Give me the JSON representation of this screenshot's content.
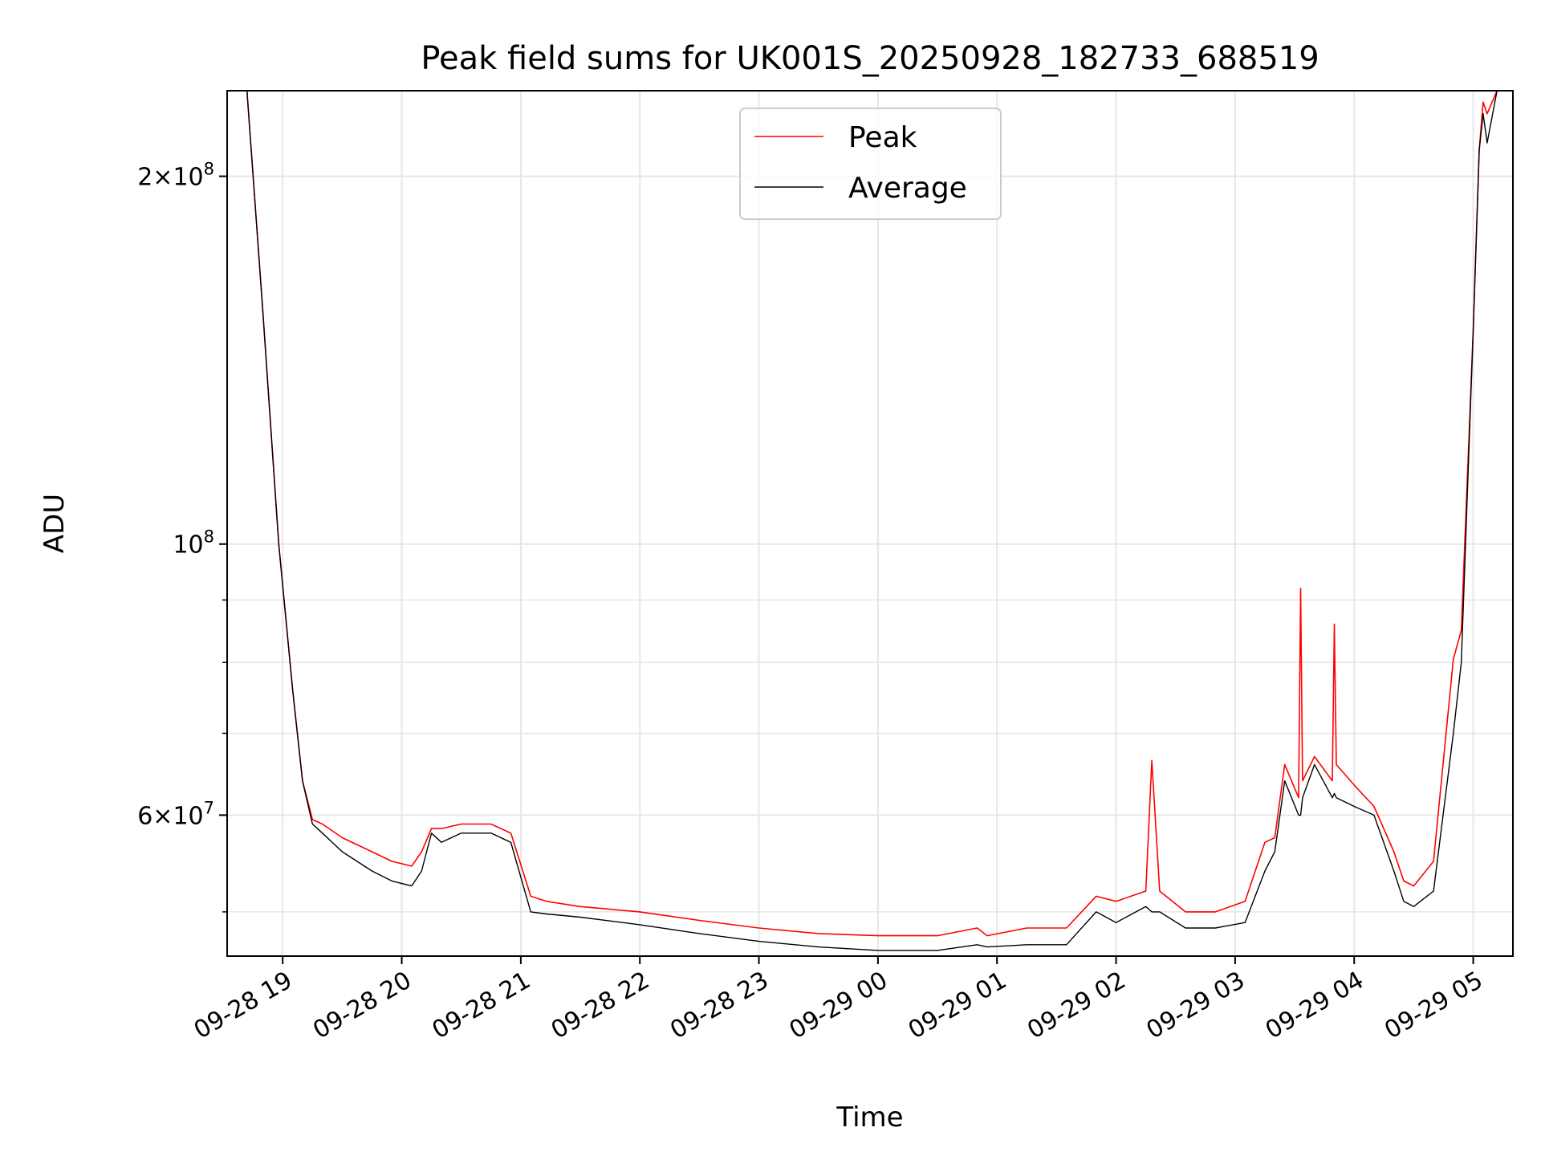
{
  "chart_data": {
    "type": "line",
    "title": "Peak field sums for UK001S_20250928_182733_688519",
    "xlabel": "Time",
    "ylabel": "ADU",
    "yscale": "log",
    "ylim": [
      46000000,
      235000000
    ],
    "xlim": [
      "2025-09-28 18:32",
      "2025-09-29 05:20"
    ],
    "grid": true,
    "legend_position": "upper-center",
    "x_tick_labels": [
      "09-28 19",
      "09-28 20",
      "09-28 21",
      "09-28 22",
      "09-28 23",
      "09-29 00",
      "09-29 01",
      "09-29 02",
      "09-29 03",
      "09-29 04",
      "09-29 05"
    ],
    "x_ticks": [
      "2025-09-28 19:00",
      "2025-09-28 20:00",
      "2025-09-28 21:00",
      "2025-09-28 22:00",
      "2025-09-28 23:00",
      "2025-09-29 00:00",
      "2025-09-29 01:00",
      "2025-09-29 02:00",
      "2025-09-29 03:00",
      "2025-09-29 04:00",
      "2025-09-29 05:00"
    ],
    "y_major_ticks": [
      {
        "value": 200000000,
        "mantissa": "2",
        "exponent": "8"
      },
      {
        "value": 100000000,
        "mantissa": "",
        "exponent": "8"
      },
      {
        "value": 60000000,
        "mantissa": "6",
        "exponent": "7"
      }
    ],
    "y_minor_ticks": [
      50000000,
      70000000,
      80000000,
      90000000
    ],
    "series": [
      {
        "name": "Peak",
        "color": "#ff0000",
        "x": [
          "2025-09-28 18:33",
          "2025-09-28 18:42",
          "2025-09-28 18:50",
          "2025-09-28 18:58",
          "2025-09-28 19:05",
          "2025-09-28 19:10",
          "2025-09-28 19:15",
          "2025-09-28 19:20",
          "2025-09-28 19:30",
          "2025-09-28 19:45",
          "2025-09-28 19:55",
          "2025-09-28 20:05",
          "2025-09-28 20:10",
          "2025-09-28 20:15",
          "2025-09-28 20:20",
          "2025-09-28 20:30",
          "2025-09-28 20:45",
          "2025-09-28 20:55",
          "2025-09-28 21:05",
          "2025-09-28 21:13",
          "2025-09-28 21:30",
          "2025-09-28 22:00",
          "2025-09-28 22:30",
          "2025-09-28 23:00",
          "2025-09-28 23:30",
          "2025-09-29 00:00",
          "2025-09-29 00:30",
          "2025-09-29 00:50",
          "2025-09-29 00:55",
          "2025-09-29 01:15",
          "2025-09-29 01:35",
          "2025-09-29 01:50",
          "2025-09-29 02:00",
          "2025-09-29 02:15",
          "2025-09-29 02:18",
          "2025-09-29 02:22",
          "2025-09-29 02:35",
          "2025-09-29 02:50",
          "2025-09-29 03:05",
          "2025-09-29 03:15",
          "2025-09-29 03:20",
          "2025-09-29 03:25",
          "2025-09-29 03:32",
          "2025-09-29 03:33",
          "2025-09-29 03:34",
          "2025-09-29 03:40",
          "2025-09-29 03:49",
          "2025-09-29 03:50",
          "2025-09-29 03:51",
          "2025-09-29 04:00",
          "2025-09-29 04:10",
          "2025-09-29 04:20",
          "2025-09-29 04:25",
          "2025-09-29 04:30",
          "2025-09-29 04:40",
          "2025-09-29 04:50",
          "2025-09-29 04:54",
          "2025-09-29 05:00",
          "2025-09-29 05:03",
          "2025-09-29 05:05",
          "2025-09-29 05:07",
          "2025-09-29 05:12"
        ],
        "values": [
          235000000,
          235000000,
          155000000,
          100000000,
          76000000,
          64000000,
          59500000,
          59000000,
          57500000,
          56000000,
          55000000,
          54500000,
          56000000,
          58500000,
          58500000,
          59000000,
          59000000,
          58000000,
          51500000,
          51000000,
          50500000,
          50000000,
          49200000,
          48500000,
          48000000,
          47800000,
          47800000,
          48500000,
          47800000,
          48500000,
          48500000,
          51500000,
          51000000,
          52000000,
          66500000,
          52000000,
          50000000,
          50000000,
          51000000,
          57000000,
          57500000,
          66000000,
          62000000,
          92000000,
          64000000,
          67000000,
          64000000,
          86000000,
          66000000,
          63500000,
          61000000,
          56000000,
          53000000,
          52500000,
          55000000,
          80500000,
          85000000,
          150000000,
          210000000,
          230000000,
          225000000,
          235000000
        ]
      },
      {
        "name": "Average",
        "color": "#000000",
        "x": [
          "2025-09-28 18:33",
          "2025-09-28 18:42",
          "2025-09-28 18:50",
          "2025-09-28 18:58",
          "2025-09-28 19:05",
          "2025-09-28 19:10",
          "2025-09-28 19:15",
          "2025-09-28 19:20",
          "2025-09-28 19:30",
          "2025-09-28 19:45",
          "2025-09-28 19:55",
          "2025-09-28 20:05",
          "2025-09-28 20:10",
          "2025-09-28 20:15",
          "2025-09-28 20:20",
          "2025-09-28 20:30",
          "2025-09-28 20:45",
          "2025-09-28 20:55",
          "2025-09-28 21:05",
          "2025-09-28 21:13",
          "2025-09-28 21:30",
          "2025-09-28 22:00",
          "2025-09-28 22:30",
          "2025-09-28 23:00",
          "2025-09-28 23:30",
          "2025-09-29 00:00",
          "2025-09-29 00:30",
          "2025-09-29 00:50",
          "2025-09-29 00:55",
          "2025-09-29 01:15",
          "2025-09-29 01:35",
          "2025-09-29 01:50",
          "2025-09-29 02:00",
          "2025-09-29 02:15",
          "2025-09-29 02:18",
          "2025-09-29 02:22",
          "2025-09-29 02:35",
          "2025-09-29 02:50",
          "2025-09-29 03:05",
          "2025-09-29 03:15",
          "2025-09-29 03:20",
          "2025-09-29 03:25",
          "2025-09-29 03:32",
          "2025-09-29 03:33",
          "2025-09-29 03:34",
          "2025-09-29 03:40",
          "2025-09-29 03:49",
          "2025-09-29 03:50",
          "2025-09-29 03:51",
          "2025-09-29 04:00",
          "2025-09-29 04:10",
          "2025-09-29 04:20",
          "2025-09-29 04:25",
          "2025-09-29 04:30",
          "2025-09-29 04:40",
          "2025-09-29 04:50",
          "2025-09-29 04:54",
          "2025-09-29 05:00",
          "2025-09-29 05:03",
          "2025-09-29 05:05",
          "2025-09-29 05:07",
          "2025-09-29 05:12"
        ],
        "values": [
          235000000,
          235000000,
          155000000,
          100000000,
          76000000,
          64000000,
          59000000,
          58000000,
          56000000,
          54000000,
          53000000,
          52500000,
          54000000,
          58000000,
          57000000,
          58000000,
          58000000,
          57000000,
          50000000,
          49800000,
          49500000,
          48800000,
          48000000,
          47300000,
          46800000,
          46500000,
          46500000,
          47000000,
          46800000,
          47000000,
          47000000,
          50000000,
          49000000,
          50500000,
          50000000,
          50000000,
          48500000,
          48500000,
          49000000,
          54000000,
          56000000,
          64000000,
          60000000,
          60000000,
          62000000,
          66000000,
          62000000,
          62500000,
          62000000,
          61000000,
          60000000,
          54000000,
          51000000,
          50500000,
          52000000,
          70000000,
          80000000,
          150000000,
          210000000,
          225000000,
          213000000,
          235000000
        ]
      }
    ]
  }
}
